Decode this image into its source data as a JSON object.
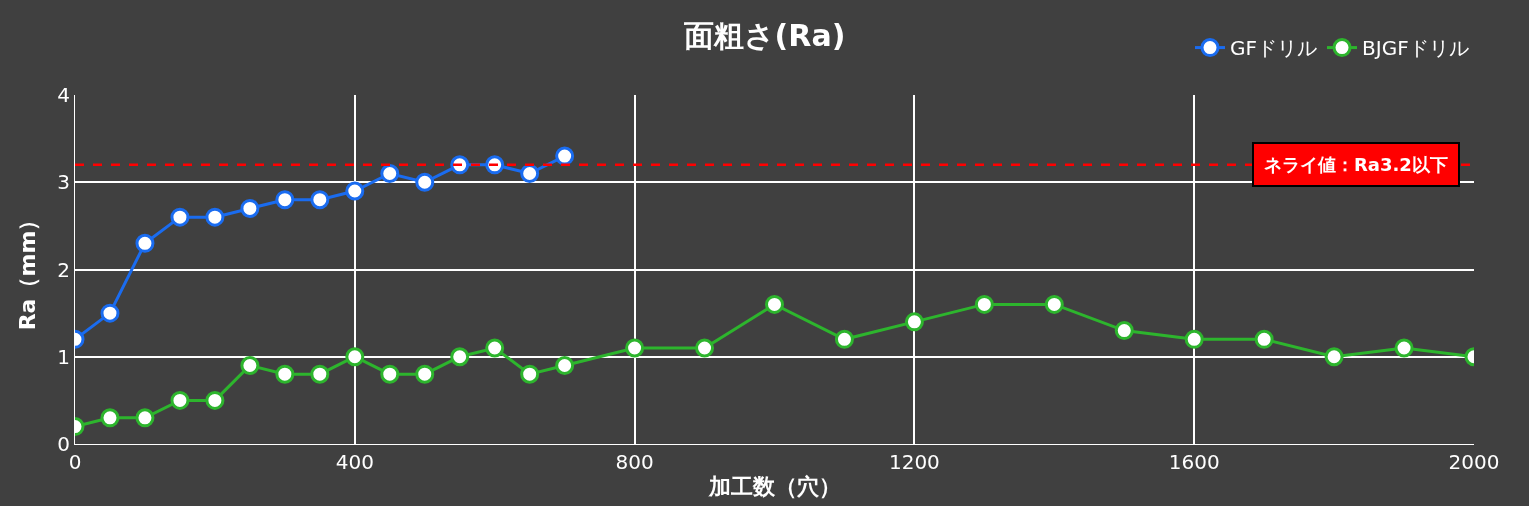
{
  "chart_data": {
    "type": "line",
    "title": "面粗さ(Ra)",
    "xlabel": "加工数（穴）",
    "ylabel": "Ra（mm）",
    "series": [
      {
        "name": "GFドリル",
        "color": "#1a6cf0",
        "x": [
          0,
          50,
          100,
          150,
          200,
          250,
          300,
          350,
          400,
          450,
          500,
          550,
          600,
          650,
          700
        ],
        "values": [
          1.2,
          1.5,
          2.3,
          2.6,
          2.6,
          2.7,
          2.8,
          2.8,
          2.9,
          3.1,
          3.0,
          3.2,
          3.2,
          3.1,
          3.3
        ]
      },
      {
        "name": "BJGFドリル",
        "color": "#2db52d",
        "x": [
          0,
          50,
          100,
          150,
          200,
          250,
          300,
          350,
          400,
          450,
          500,
          550,
          600,
          650,
          700,
          800,
          900,
          1000,
          1100,
          1200,
          1300,
          1400,
          1500,
          1600,
          1700,
          1800,
          1900,
          2000
        ],
        "values": [
          0.2,
          0.3,
          0.3,
          0.5,
          0.5,
          0.9,
          0.8,
          0.8,
          1.0,
          0.8,
          0.8,
          1.0,
          1.1,
          0.8,
          0.9,
          1.1,
          1.1,
          1.6,
          1.2,
          1.4,
          1.6,
          1.6,
          1.3,
          1.2,
          1.2,
          1.0,
          1.1,
          1.0
        ]
      }
    ],
    "xlim": [
      0,
      2000
    ],
    "xticks": [
      0,
      400,
      800,
      1200,
      1600,
      2000
    ],
    "ylim": [
      0,
      4
    ],
    "yticks": [
      0,
      1,
      2,
      3,
      4
    ],
    "ref_lines": [
      {
        "axis": "y",
        "value": 3.2,
        "label": "ネライ値：Ra3.2以下",
        "color": "#ff0000",
        "line_style": "dashed"
      }
    ],
    "grid": true,
    "legend": "top right",
    "marker": "circle",
    "line_style": "solid"
  }
}
